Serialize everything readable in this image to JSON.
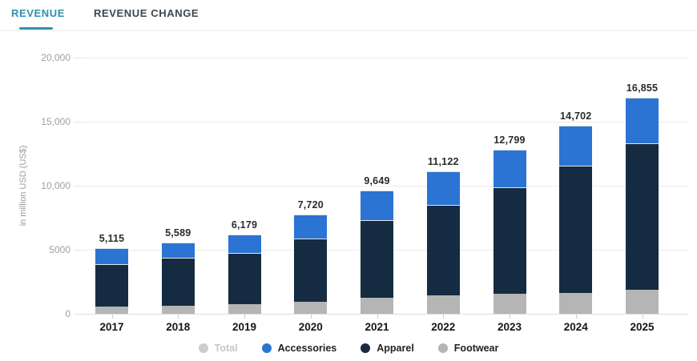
{
  "tabs": [
    {
      "label": "REVENUE",
      "active": true
    },
    {
      "label": "REVENUE CHANGE",
      "active": false
    }
  ],
  "colors": {
    "tab_active": "#2d91ad",
    "tab_inactive": "#3c4652",
    "accessories_blue": "#2b74d3",
    "apparel_navy": "#152b42",
    "footwear_gray": "#b5b5b5",
    "muted_legend": "#cdcdcd",
    "gridline": "#ececec",
    "axis_text": "#a0a0a0",
    "value_label": "#2b2b2b"
  },
  "chart_data": {
    "type": "bar",
    "stacked": true,
    "ylabel": "in million USD (US$)",
    "xlabel": "",
    "ylim": [
      0,
      20000
    ],
    "grid": "horizontal",
    "legend_position": "bottom",
    "categories": [
      "2017",
      "2018",
      "2019",
      "2020",
      "2021",
      "2022",
      "2023",
      "2024",
      "2025"
    ],
    "total_labels": [
      "5,115",
      "5,589",
      "6,179",
      "7,720",
      "9,649",
      "11,122",
      "12,799",
      "14,702",
      "16,855"
    ],
    "totals": [
      5115,
      5589,
      6179,
      7720,
      9649,
      11122,
      12799,
      14702,
      16855
    ],
    "series": [
      {
        "name": "Footwear",
        "color": "#b5b5b5",
        "values": [
          560,
          645,
          730,
          920,
          1270,
          1440,
          1540,
          1640,
          1850
        ]
      },
      {
        "name": "Apparel",
        "color": "#152b42",
        "values": [
          3335,
          3710,
          4040,
          4936,
          6040,
          7040,
          8335,
          9905,
          11460
        ]
      },
      {
        "name": "Accessories",
        "color": "#2b74d3",
        "values": [
          1220,
          1234,
          1409,
          1864,
          2339,
          2642,
          2924,
          3157,
          3545
        ]
      }
    ],
    "y_ticks": [
      {
        "value": 0,
        "label": "0"
      },
      {
        "value": 5000,
        "label": "5000"
      },
      {
        "value": 10000,
        "label": "10,000"
      },
      {
        "value": 15000,
        "label": "15,000"
      },
      {
        "value": 20000,
        "label": "20,000"
      }
    ],
    "legend": [
      {
        "label": "Total",
        "color": "#cdcdcd",
        "muted": true
      },
      {
        "label": "Accessories",
        "color": "#2b74d3",
        "muted": false
      },
      {
        "label": "Apparel",
        "color": "#152b42",
        "muted": false
      },
      {
        "label": "Footwear",
        "color": "#b5b5b5",
        "muted": false
      }
    ]
  }
}
